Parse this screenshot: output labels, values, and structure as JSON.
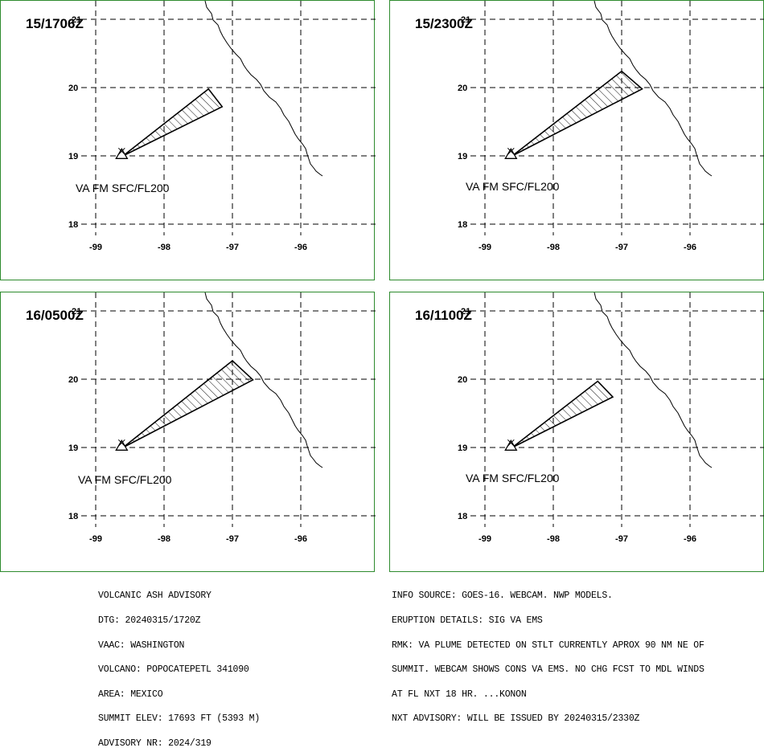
{
  "panels": [
    {
      "time": "15/1706Z",
      "label": "VA FM SFC/FL200",
      "plume": [
        [
          -98.6,
          19.0
        ],
        [
          -97.35,
          19.98
        ],
        [
          -97.15,
          19.72
        ]
      ]
    },
    {
      "time": "15/2300Z",
      "label": "VA FM SFC/FL200",
      "plume": [
        [
          -98.6,
          19.0
        ],
        [
          -97.0,
          20.24
        ],
        [
          -96.7,
          19.98
        ]
      ]
    },
    {
      "time": "16/0500Z",
      "label": "VA FM SFC/FL200",
      "plume": [
        [
          -98.6,
          19.0
        ],
        [
          -97.0,
          20.27
        ],
        [
          -96.7,
          19.99
        ]
      ]
    },
    {
      "time": "16/1100Z",
      "label": "VA FM SFC/FL200",
      "plume": [
        [
          -98.6,
          19.0
        ],
        [
          -97.35,
          19.97
        ],
        [
          -97.13,
          19.74
        ]
      ]
    }
  ],
  "axes": {
    "lon_ticks": [
      "-99",
      "-98",
      "-97",
      "-96"
    ],
    "lat_ticks": [
      "21",
      "20",
      "19",
      "18"
    ]
  },
  "volcano": {
    "lon": -98.62,
    "lat": 19.02
  },
  "advisory": {
    "left": [
      "VOLCANIC ASH ADVISORY",
      "DTG: 20240315/1720Z",
      "VAAC: WASHINGTON",
      "VOLCANO: POPOCATEPETL 341090",
      "AREA: MEXICO",
      "SUMMIT ELEV: 17693 FT (5393 M)",
      "ADVISORY NR: 2024/319"
    ],
    "right": [
      "INFO SOURCE: GOES-16. WEBCAM. NWP MODELS.",
      "ERUPTION DETAILS: SIG VA EMS",
      "RMK: VA PLUME DETECTED ON STLT CURRENTLY APROX 90 NM NE OF",
      "SUMMIT. WEBCAM SHOWS CONS VA EMS. NO CHG FCST TO MDL WINDS",
      "AT FL NXT 18 HR. ...KONON",
      "NXT ADVISORY: WILL BE ISSUED BY 20240315/2330Z"
    ]
  },
  "colors": {
    "panel_border": "#2e8b2e",
    "lines": "#000000"
  }
}
